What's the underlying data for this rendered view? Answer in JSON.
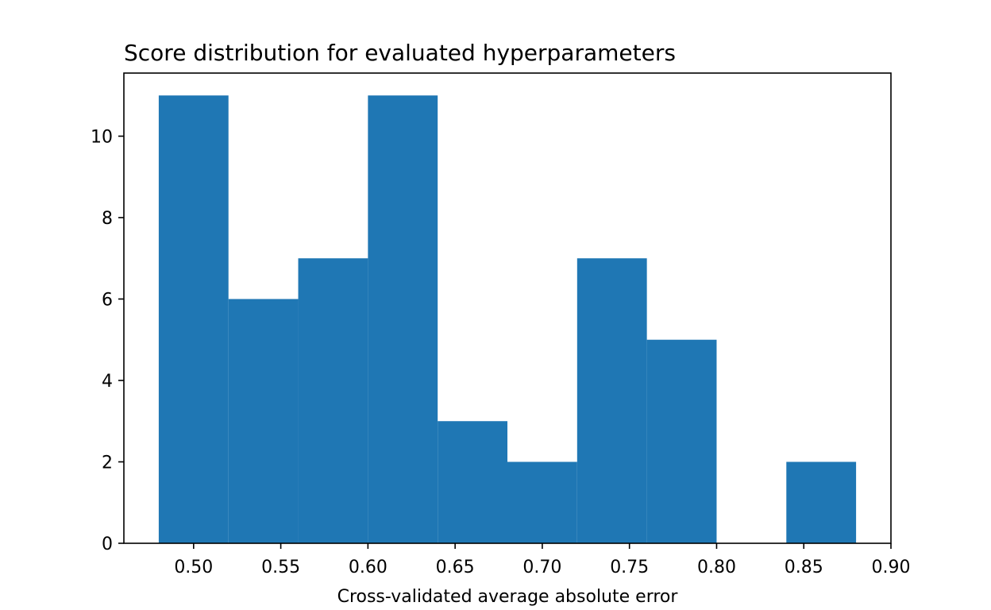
{
  "chart_data": {
    "type": "bar",
    "title": "Score distribution for evaluated hyperparameters",
    "xlabel": "Cross-validated average absolute error",
    "ylabel": "",
    "bins": [
      {
        "x0": 0.48,
        "x1": 0.52,
        "count": 11
      },
      {
        "x0": 0.52,
        "x1": 0.56,
        "count": 6
      },
      {
        "x0": 0.56,
        "x1": 0.6,
        "count": 7
      },
      {
        "x0": 0.6,
        "x1": 0.64,
        "count": 11
      },
      {
        "x0": 0.64,
        "x1": 0.68,
        "count": 3
      },
      {
        "x0": 0.68,
        "x1": 0.72,
        "count": 2
      },
      {
        "x0": 0.72,
        "x1": 0.76,
        "count": 7
      },
      {
        "x0": 0.76,
        "x1": 0.8,
        "count": 5
      },
      {
        "x0": 0.8,
        "x1": 0.84,
        "count": 0
      },
      {
        "x0": 0.84,
        "x1": 0.88,
        "count": 2
      }
    ],
    "xlim": [
      0.46,
      0.9
    ],
    "ylim": [
      0,
      11.55
    ],
    "xticks": [
      0.5,
      0.55,
      0.6,
      0.65,
      0.7,
      0.75,
      0.8,
      0.85,
      0.9
    ],
    "xtick_labels": [
      "0.50",
      "0.55",
      "0.60",
      "0.65",
      "0.70",
      "0.75",
      "0.80",
      "0.85",
      "0.90"
    ],
    "yticks": [
      0,
      2,
      4,
      6,
      8,
      10
    ],
    "ytick_labels": [
      "0",
      "2",
      "4",
      "6",
      "8",
      "10"
    ],
    "bar_color": "#1f77b4",
    "grid": false,
    "legend": "none"
  }
}
